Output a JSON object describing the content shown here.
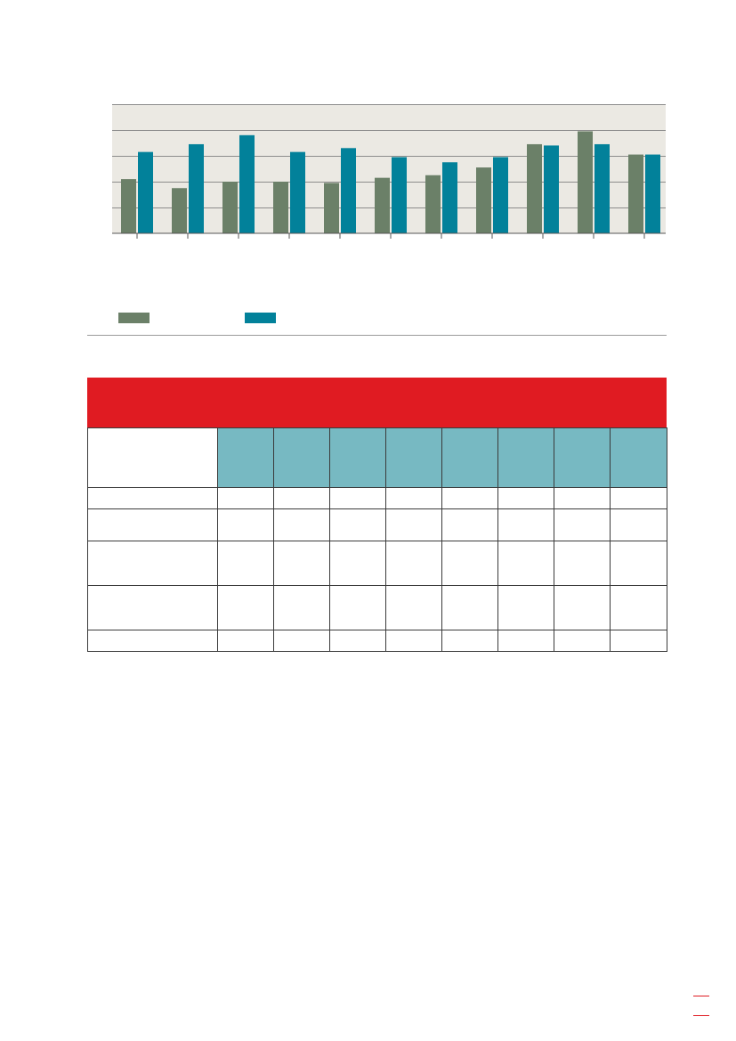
{
  "chart_data": {
    "type": "bar",
    "categories": [
      "",
      "",
      "",
      "",
      "",
      "",
      "",
      "",
      "",
      "",
      ""
    ],
    "series": [
      {
        "values": [
          2.1,
          1.75,
          2.0,
          2.0,
          1.95,
          2.15,
          2.25,
          2.55,
          3.45,
          3.95,
          3.05
        ],
        "color": "#6b8068"
      },
      {
        "values": [
          3.15,
          3.45,
          3.8,
          3.15,
          3.3,
          2.95,
          2.75,
          2.95,
          3.4,
          3.45,
          3.05
        ],
        "color": "#02819a"
      }
    ],
    "ylim": [
      0,
      5
    ],
    "grid": true,
    "background": "#ebe9e3"
  },
  "legend": [
    {
      "color": "#6b8068"
    },
    {
      "color": "#02819a"
    }
  ],
  "table": {
    "header_color": "#e01b22",
    "teal_color": "#77b9c2",
    "data_columns": 8,
    "rows": 6
  },
  "accent": "#e01b22"
}
